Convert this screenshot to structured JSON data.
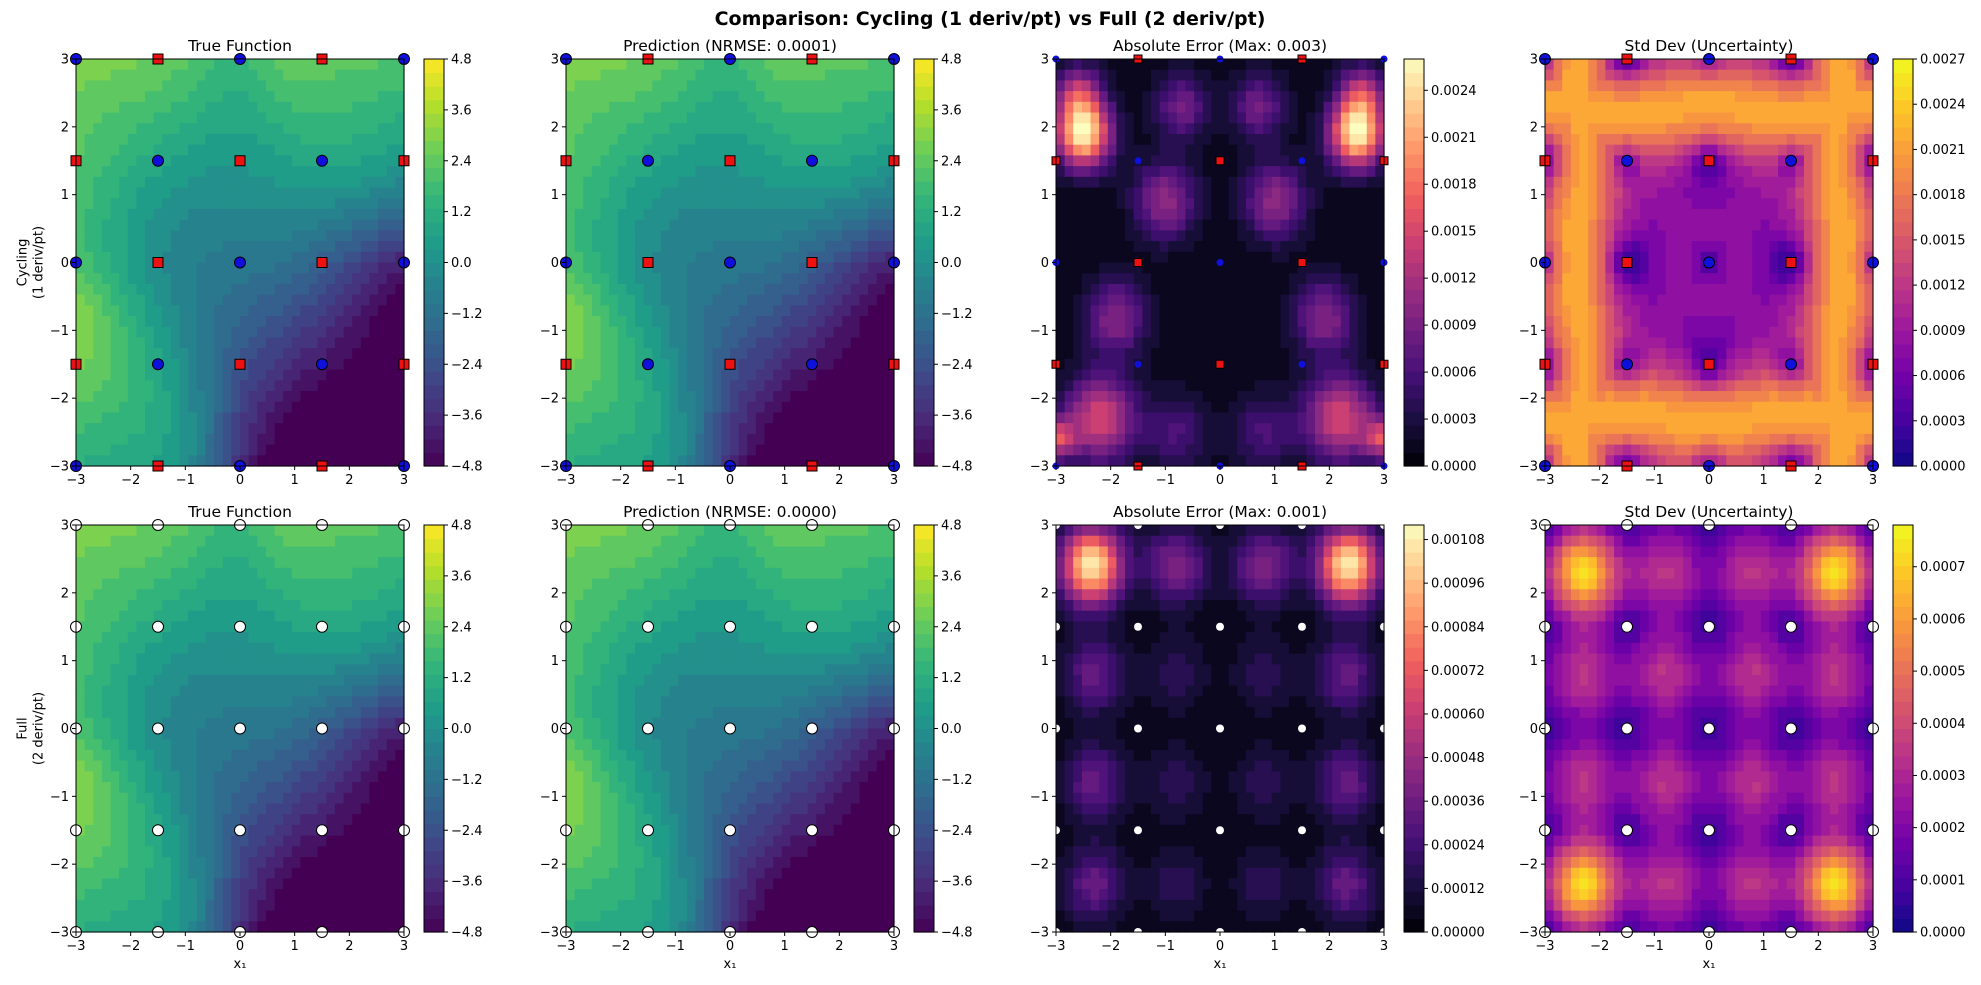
{
  "figure": {
    "suptitle": "Comparison: Cycling (1 deriv/pt) vs Full (2 deriv/pt)",
    "row_labels": [
      [
        "Cycling",
        "(1 deriv/pt)"
      ],
      [
        "Full",
        "(2 deriv/pt)"
      ]
    ],
    "xlabel": "x₁"
  },
  "colors": {
    "cycling_deriv_marker": "#1010dd",
    "cycling_square_marker": "#ee1111",
    "full_marker": "#ffffff",
    "marker_edge": "#000000"
  },
  "colormaps": {
    "viridis": [
      "#440154",
      "#482878",
      "#3e4989",
      "#31688e",
      "#26828e",
      "#1f9e89",
      "#35b779",
      "#6ece58",
      "#b5de2b",
      "#fde725"
    ],
    "magma": [
      "#000004",
      "#180f3d",
      "#440f76",
      "#721f81",
      "#9e2f7f",
      "#cd4071",
      "#f1605d",
      "#fd9668",
      "#feca8d",
      "#fcfdbf"
    ],
    "plasma": [
      "#0d0887",
      "#46039f",
      "#7201a8",
      "#9c179e",
      "#bd3786",
      "#d8576b",
      "#ed7953",
      "#fb9f3a",
      "#fdca26",
      "#f0f921"
    ]
  },
  "chart_data": [
    {
      "type": "heatmap",
      "row": "Cycling (1 deriv/pt)",
      "title": "True Function",
      "colormap": "viridis",
      "xlim": [
        -3,
        3
      ],
      "ylim": [
        -3,
        3
      ],
      "x_ticks": [
        "−3",
        "−2",
        "−1",
        "0",
        "1",
        "2",
        "3"
      ],
      "y_ticks": [
        "−3",
        "−2",
        "−1",
        "0",
        "1",
        "2",
        "3"
      ],
      "xlabel": "",
      "colorbar": {
        "range": [
          -4.8,
          4.8
        ],
        "ticks": [
          "−4.8",
          "−3.6",
          "−2.4",
          "−1.2",
          "0.0",
          "1.2",
          "2.4",
          "3.6",
          "4.8"
        ]
      },
      "field": "true",
      "markers": "cycling"
    },
    {
      "type": "heatmap",
      "row": "Cycling (1 deriv/pt)",
      "title": "Prediction (NRMSE: 0.0001)",
      "colormap": "viridis",
      "xlim": [
        -3,
        3
      ],
      "ylim": [
        -3,
        3
      ],
      "x_ticks": [
        "−3",
        "−2",
        "−1",
        "0",
        "1",
        "2",
        "3"
      ],
      "y_ticks": [
        "−3",
        "−2",
        "−1",
        "0",
        "1",
        "2",
        "3"
      ],
      "xlabel": "",
      "colorbar": {
        "range": [
          -4.8,
          4.8
        ],
        "ticks": [
          "−4.8",
          "−3.6",
          "−2.4",
          "−1.2",
          "0.0",
          "1.2",
          "2.4",
          "3.6",
          "4.8"
        ]
      },
      "field": "true",
      "markers": "cycling"
    },
    {
      "type": "heatmap",
      "row": "Cycling (1 deriv/pt)",
      "title": "Absolute Error (Max: 0.003)",
      "colormap": "magma",
      "xlim": [
        -3,
        3
      ],
      "ylim": [
        -3,
        3
      ],
      "x_ticks": [
        "−3",
        "−2",
        "−1",
        "0",
        "1",
        "2",
        "3"
      ],
      "y_ticks": [
        "−3",
        "−2",
        "−1",
        "0",
        "1",
        "2",
        "3"
      ],
      "xlabel": "",
      "colorbar": {
        "range": [
          0,
          0.0026
        ],
        "ticks": [
          "0.0000",
          "0.0003",
          "0.0006",
          "0.0009",
          "0.0012",
          "0.0015",
          "0.0018",
          "0.0021",
          "0.0024"
        ]
      },
      "field": "err_cycling",
      "markers": "cycling_small"
    },
    {
      "type": "heatmap",
      "row": "Cycling (1 deriv/pt)",
      "title": "Std Dev (Uncertainty)",
      "colormap": "plasma",
      "xlim": [
        -3,
        3
      ],
      "ylim": [
        -3,
        3
      ],
      "x_ticks": [
        "−3",
        "−2",
        "−1",
        "0",
        "1",
        "2",
        "3"
      ],
      "y_ticks": [
        "−3",
        "−2",
        "−1",
        "0",
        "1",
        "2",
        "3"
      ],
      "xlabel": "",
      "colorbar": {
        "range": [
          0,
          0.0027
        ],
        "ticks": [
          "0.0000",
          "0.0003",
          "0.0006",
          "0.0009",
          "0.0012",
          "0.0015",
          "0.0018",
          "0.0021",
          "0.0024",
          "0.0027"
        ]
      },
      "field": "std_cycling",
      "markers": "cycling"
    },
    {
      "type": "heatmap",
      "row": "Full (2 deriv/pt)",
      "title": "True Function",
      "colormap": "viridis",
      "xlim": [
        -3,
        3
      ],
      "ylim": [
        -3,
        3
      ],
      "x_ticks": [
        "−3",
        "−2",
        "−1",
        "0",
        "1",
        "2",
        "3"
      ],
      "y_ticks": [
        "−3",
        "−2",
        "−1",
        "0",
        "1",
        "2",
        "3"
      ],
      "xlabel": "x₁",
      "colorbar": {
        "range": [
          -4.8,
          4.8
        ],
        "ticks": [
          "−4.8",
          "−3.6",
          "−2.4",
          "−1.2",
          "0.0",
          "1.2",
          "2.4",
          "3.6",
          "4.8"
        ]
      },
      "field": "true",
      "markers": "full"
    },
    {
      "type": "heatmap",
      "row": "Full (2 deriv/pt)",
      "title": "Prediction (NRMSE: 0.0000)",
      "colormap": "viridis",
      "xlim": [
        -3,
        3
      ],
      "ylim": [
        -3,
        3
      ],
      "x_ticks": [
        "−3",
        "−2",
        "−1",
        "0",
        "1",
        "2",
        "3"
      ],
      "y_ticks": [
        "−3",
        "−2",
        "−1",
        "0",
        "1",
        "2",
        "3"
      ],
      "xlabel": "x₁",
      "colorbar": {
        "range": [
          -4.8,
          4.8
        ],
        "ticks": [
          "−4.8",
          "−3.6",
          "−2.4",
          "−1.2",
          "0.0",
          "1.2",
          "2.4",
          "3.6",
          "4.8"
        ]
      },
      "field": "true",
      "markers": "full"
    },
    {
      "type": "heatmap",
      "row": "Full (2 deriv/pt)",
      "title": "Absolute Error (Max: 0.001)",
      "colormap": "magma",
      "xlim": [
        -3,
        3
      ],
      "ylim": [
        -3,
        3
      ],
      "x_ticks": [
        "−3",
        "−2",
        "−1",
        "0",
        "1",
        "2",
        "3"
      ],
      "y_ticks": [
        "−3",
        "−2",
        "−1",
        "0",
        "1",
        "2",
        "3"
      ],
      "xlabel": "x₁",
      "colorbar": {
        "range": [
          0,
          0.00112
        ],
        "ticks": [
          "0.00000",
          "0.00012",
          "0.00024",
          "0.00036",
          "0.00048",
          "0.00060",
          "0.00072",
          "0.00084",
          "0.00096",
          "0.00108"
        ]
      },
      "field": "err_full",
      "markers": "full_small"
    },
    {
      "type": "heatmap",
      "row": "Full (2 deriv/pt)",
      "title": "Std Dev (Uncertainty)",
      "colormap": "plasma",
      "xlim": [
        -3,
        3
      ],
      "ylim": [
        -3,
        3
      ],
      "x_ticks": [
        "−3",
        "−2",
        "−1",
        "0",
        "1",
        "2",
        "3"
      ],
      "y_ticks": [
        "−3",
        "−2",
        "−1",
        "0",
        "1",
        "2",
        "3"
      ],
      "xlabel": "x₁",
      "colorbar": {
        "range": [
          0,
          0.00078
        ],
        "ticks": [
          "0.0000",
          "0.0001",
          "0.0002",
          "0.0003",
          "0.0004",
          "0.0005",
          "0.0006",
          "0.0007"
        ]
      },
      "field": "std_full",
      "markers": "full"
    }
  ],
  "training_points": {
    "grid": [
      -3,
      -1.5,
      0,
      1.5,
      3
    ],
    "cycling_rule": "circle where (i + j) is even, square where (i + j) is odd",
    "full_rule": "circle at every grid point"
  }
}
